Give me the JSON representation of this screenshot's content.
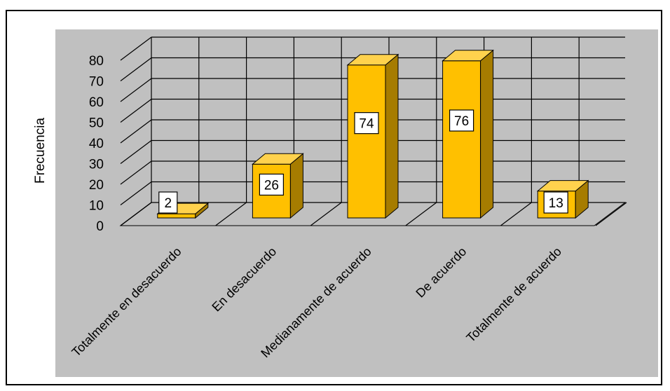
{
  "chart_data": {
    "type": "bar",
    "categories": [
      "Totalmente en desacuerdo",
      "En desacuerdo",
      "Medianamente de acuerdo",
      "De acuerdo",
      "Totalmente de acuerdo"
    ],
    "values": [
      2,
      26,
      74,
      76,
      13
    ],
    "ylabel": "Frecuencia",
    "xlabel": "",
    "title": "",
    "ylim": [
      0,
      80
    ],
    "yticks": [
      0,
      10,
      20,
      30,
      40,
      50,
      60,
      70,
      80
    ],
    "grid": true,
    "bar_color": "#FFC000",
    "plot_background": "#C0C0C0"
  }
}
